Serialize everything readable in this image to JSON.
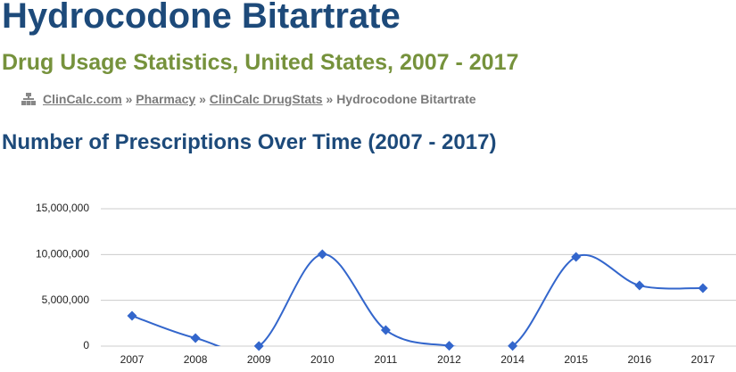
{
  "header": {
    "title": "Hydrocodone Bitartrate",
    "subtitle": "Drug Usage Statistics, United States, 2007 - 2017"
  },
  "breadcrumb": {
    "items": [
      "ClinCalc.com",
      "Pharmacy",
      "ClinCalc DrugStats"
    ],
    "current": "Hydrocodone Bitartrate",
    "separator": "»"
  },
  "section": {
    "heading": "Number of Prescriptions Over Time (2007 - 2017)"
  },
  "chart_data": {
    "type": "line",
    "smooth": true,
    "marker": "diamond",
    "color": "#3366cc",
    "categories": [
      "2007",
      "2008",
      "2009",
      "2010",
      "2011",
      "2012",
      "2014",
      "2015",
      "2016",
      "2017"
    ],
    "values": [
      3310000,
      880000,
      10000,
      10030000,
      1750000,
      40000,
      20000,
      9740000,
      6620000,
      6330000
    ],
    "ylim": [
      0,
      15000000
    ],
    "yticks": [
      0,
      {
        "value": 5000000,
        "label": "5,000,000"
      },
      {
        "value": 10000000,
        "label": "10,000,000"
      },
      {
        "value": 15000000,
        "label": "15,000,000"
      }
    ],
    "grid": true
  }
}
